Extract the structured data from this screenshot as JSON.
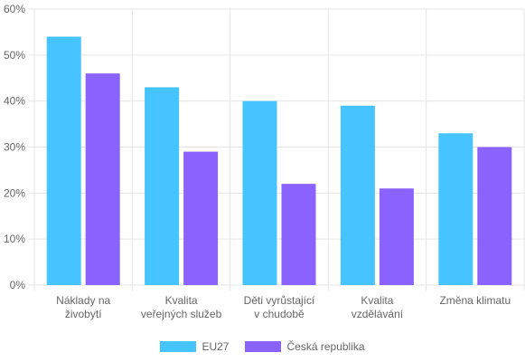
{
  "chart_data": {
    "type": "bar",
    "categories": [
      [
        "Náklady na",
        "živobytí"
      ],
      [
        "Kvalita",
        "veřejných služeb"
      ],
      [
        "Děti vyrůstající",
        "v chudobě"
      ],
      [
        "Kvalita",
        "vzdělávání"
      ],
      [
        "Změna klimatu"
      ]
    ],
    "series": [
      {
        "name": "EU27",
        "color": "#45C4FF",
        "values": [
          54,
          43,
          40,
          39,
          33
        ]
      },
      {
        "name": "Česká republika",
        "color": "#8A63FF",
        "values": [
          46,
          29,
          22,
          21,
          30
        ]
      }
    ],
    "ylim": [
      0,
      60
    ],
    "yticks": [
      0,
      10,
      20,
      30,
      40,
      50,
      60
    ],
    "ytick_labels": [
      "0%",
      "10%",
      "20%",
      "30%",
      "40%",
      "50%",
      "60%"
    ],
    "grid": true,
    "legend_position": "bottom"
  }
}
